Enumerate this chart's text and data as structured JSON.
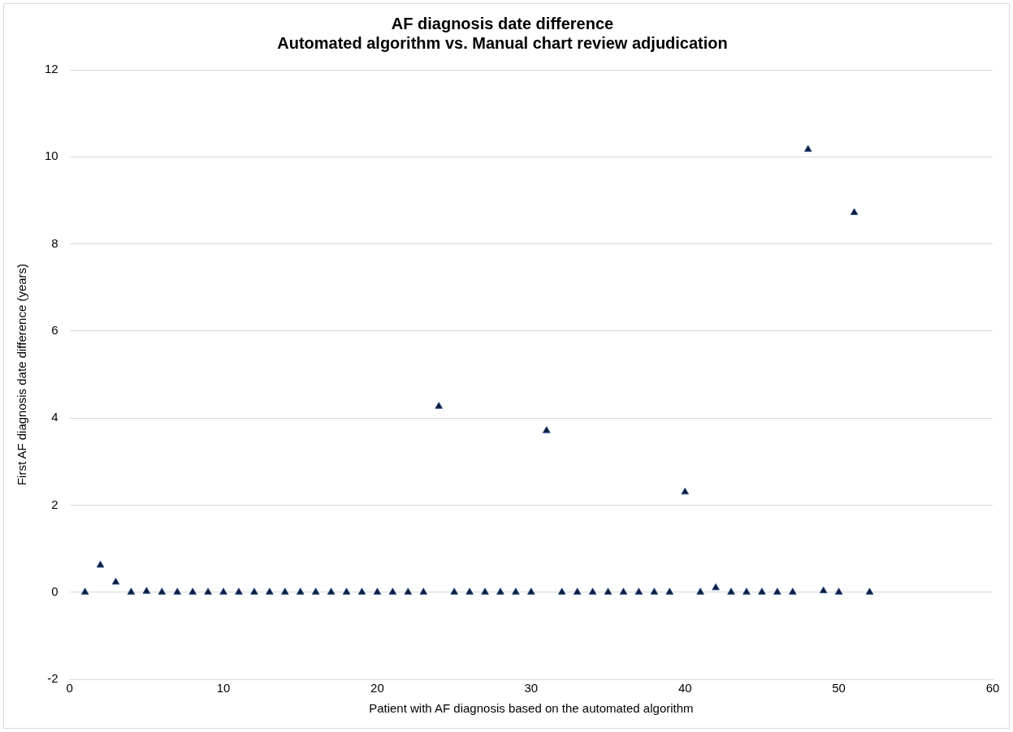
{
  "chart_data": {
    "type": "scatter",
    "title": [
      "AF diagnosis date difference",
      "Automated algorithm vs. Manual chart review adjudication"
    ],
    "xlabel": "Patient with AF diagnosis based on the automated algorithm",
    "ylabel": "First AF diagnosis date difference (years)",
    "x": [
      1,
      2,
      3,
      4,
      5,
      6,
      7,
      8,
      9,
      10,
      11,
      12,
      13,
      14,
      15,
      16,
      17,
      18,
      19,
      20,
      21,
      22,
      23,
      24,
      25,
      26,
      27,
      28,
      29,
      30,
      31,
      32,
      33,
      34,
      35,
      36,
      37,
      38,
      39,
      40,
      41,
      42,
      43,
      44,
      45,
      46,
      47,
      48,
      49,
      50,
      51,
      52
    ],
    "series": [
      {
        "color": "#0d1b33",
        "values": [
          0,
          0.62,
          0.23,
          0,
          0.02,
          0,
          0,
          0,
          0,
          0,
          0,
          0,
          0,
          0,
          0,
          0,
          0,
          0,
          0,
          0,
          0,
          0,
          0,
          4.27,
          0,
          0,
          0,
          0,
          0,
          0,
          3.71,
          0,
          0,
          0,
          0,
          0,
          0,
          0,
          0,
          2.3,
          0,
          0.1,
          0,
          0,
          0,
          0,
          0,
          10.17,
          0.03,
          0,
          8.72,
          0
        ]
      }
    ],
    "xlim": [
      0,
      60
    ],
    "xticks": [
      0,
      10,
      20,
      30,
      40,
      50,
      60
    ],
    "ylim": [
      -2,
      12
    ],
    "yticks": [
      -2,
      0,
      2,
      4,
      6,
      8,
      10,
      12
    ],
    "grid": "y",
    "marker": "triangle",
    "legend": false
  }
}
